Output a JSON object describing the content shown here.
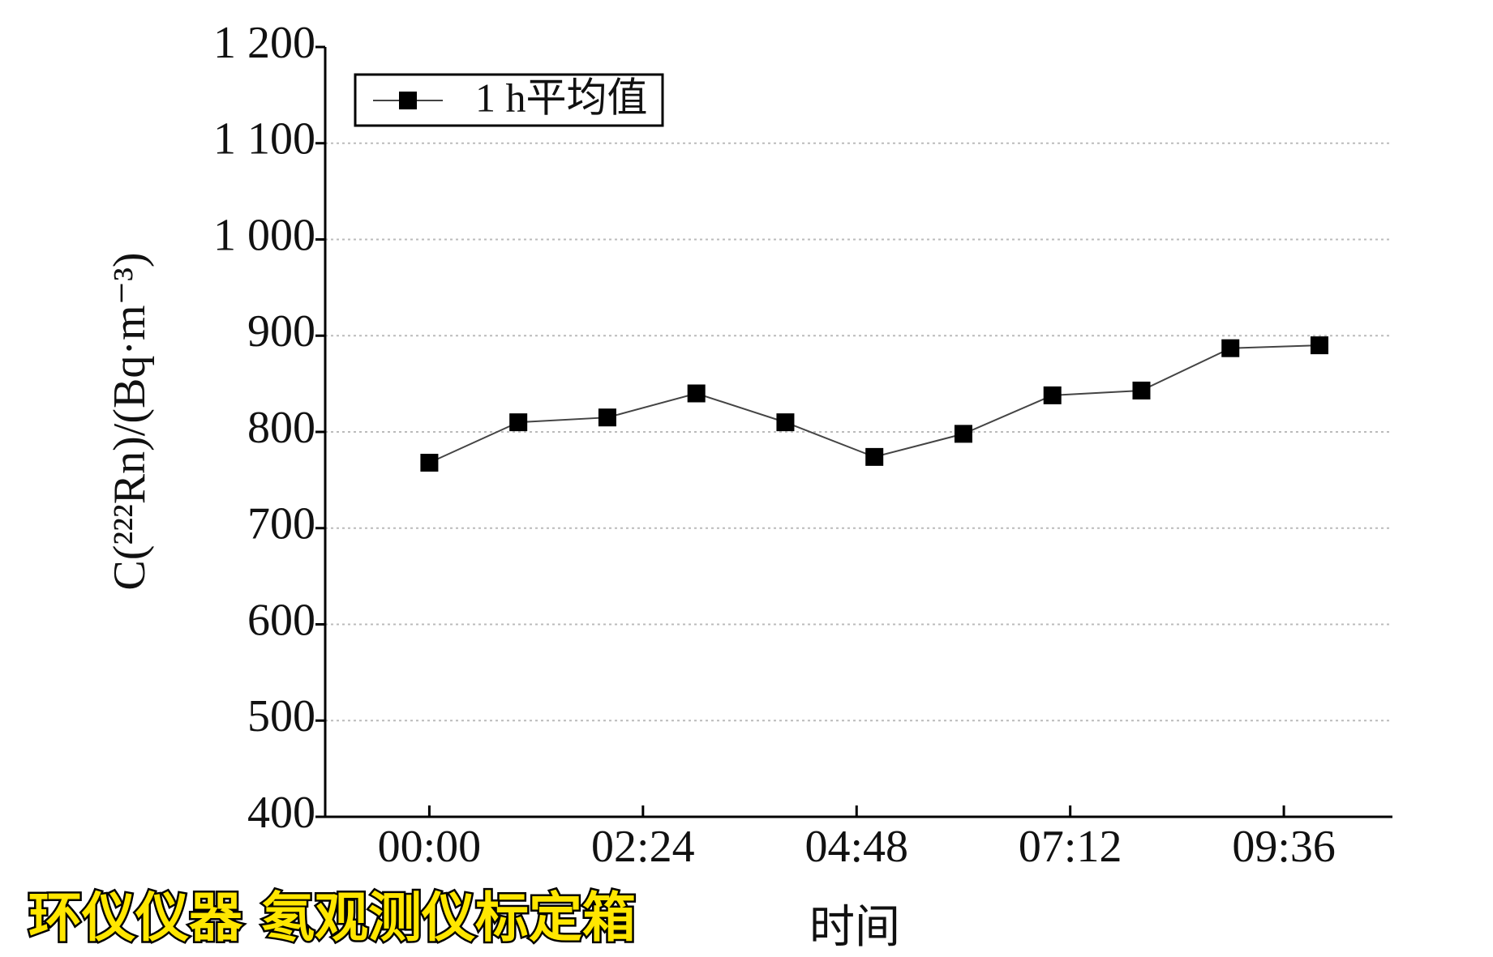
{
  "chart_data": {
    "type": "line",
    "x": [
      0,
      1,
      2,
      3,
      4,
      5,
      6,
      7,
      8,
      9,
      10
    ],
    "series": [
      {
        "name": "1 h平均值",
        "color": "#000000",
        "values": [
          768,
          810,
          815,
          840,
          810,
          774,
          798,
          838,
          843,
          887,
          890
        ]
      }
    ],
    "xlim": [
      -1.17,
      10.82
    ],
    "xticks": [
      {
        "value": 0,
        "label": "00:00"
      },
      {
        "value": 2.4,
        "label": "02:24"
      },
      {
        "value": 4.8,
        "label": "04:48"
      },
      {
        "value": 7.2,
        "label": "07:12"
      },
      {
        "value": 9.6,
        "label": "09:36"
      }
    ],
    "ylim": [
      400,
      1200
    ],
    "yticks": [
      400,
      500,
      600,
      700,
      800,
      900,
      {
        "value": 1000,
        "label": "1 000"
      },
      {
        "value": 1100,
        "label": "1 100"
      },
      {
        "value": 1200,
        "label": "1 200"
      }
    ],
    "xlabel": "时间",
    "ylabel": "C(²²²Rn)/(Bq·m⁻³)",
    "grid": true,
    "legend": "upper left",
    "watermark": "环仪仪器 氡观测仪标定箱"
  }
}
